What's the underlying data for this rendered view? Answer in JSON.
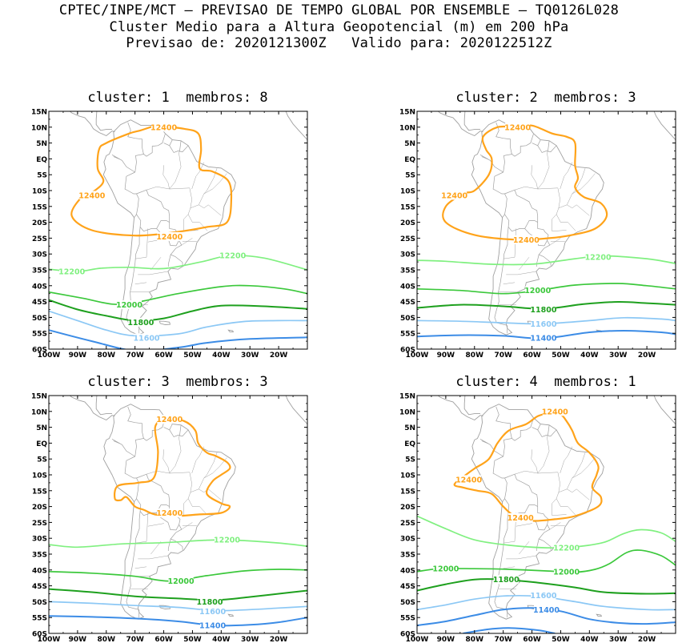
{
  "header": {
    "line1": "CPTEC/INPE/MCT – PREVISAO DE TEMPO GLOBAL POR ENSEMBLE – TQ0126L028",
    "line2": "Cluster Medio para a Altura Geopotencial (m) em 200 hPa",
    "line3": "Previsao de: 2020121300Z   Valido para: 2020122512Z"
  },
  "axes": {
    "lat_labels": [
      "15N",
      "10N",
      "5N",
      "EQ",
      "5S",
      "10S",
      "15S",
      "20S",
      "25S",
      "30S",
      "35S",
      "40S",
      "45S",
      "50S",
      "55S",
      "60S"
    ],
    "lon_labels": [
      "100W",
      "90W",
      "80W",
      "70W",
      "60W",
      "50W",
      "40W",
      "30W",
      "20W"
    ]
  },
  "colors": {
    "12400": "#ffa31a",
    "12200": "#80f080",
    "12000": "#3cc83c",
    "11800": "#1ea01e",
    "11600": "#8cc8f5",
    "11400": "#3c8ce6",
    "coast": "#a0a0a0"
  },
  "panels": [
    {
      "title": "cluster: 1  membros: 8",
      "labels": [
        {
          "text": "12400",
          "lon": -60,
          "lat": 10,
          "color": "#ffa31a"
        },
        {
          "text": "12400",
          "lon": -85,
          "lat": -11.5,
          "color": "#ffa31a"
        },
        {
          "text": "12400",
          "lon": -58,
          "lat": -24.5,
          "color": "#ffa31a"
        },
        {
          "text": "12200",
          "lon": -36,
          "lat": -30.5,
          "color": "#80f080"
        },
        {
          "text": "12200",
          "lon": -92,
          "lat": -35.5,
          "color": "#80f080"
        },
        {
          "text": "12000",
          "lon": -72,
          "lat": -46,
          "color": "#3cc83c"
        },
        {
          "text": "11800",
          "lon": -68,
          "lat": -51.5,
          "color": "#1ea01e"
        },
        {
          "text": "11600",
          "lon": -66,
          "lat": -56.5,
          "color": "#8cc8f5"
        }
      ]
    },
    {
      "title": "cluster: 2  membros: 3",
      "labels": [
        {
          "text": "12400",
          "lon": -65,
          "lat": 10,
          "color": "#ffa31a"
        },
        {
          "text": "12400",
          "lon": -87,
          "lat": -11.5,
          "color": "#ffa31a"
        },
        {
          "text": "12400",
          "lon": -62,
          "lat": -25.5,
          "color": "#ffa31a"
        },
        {
          "text": "12200",
          "lon": -37,
          "lat": -31,
          "color": "#80f080"
        },
        {
          "text": "12000",
          "lon": -58,
          "lat": -41.5,
          "color": "#3cc83c"
        },
        {
          "text": "11800",
          "lon": -56,
          "lat": -47.5,
          "color": "#1ea01e"
        },
        {
          "text": "11600",
          "lon": -56,
          "lat": -52,
          "color": "#8cc8f5"
        },
        {
          "text": "11400",
          "lon": -56,
          "lat": -56.5,
          "color": "#3c8ce6"
        }
      ]
    },
    {
      "title": "cluster: 3  membros: 3",
      "labels": [
        {
          "text": "12400",
          "lon": -58,
          "lat": 7.5,
          "color": "#ffa31a"
        },
        {
          "text": "12400",
          "lon": -58,
          "lat": -22,
          "color": "#ffa31a"
        },
        {
          "text": "12200",
          "lon": -38,
          "lat": -30.5,
          "color": "#80f080"
        },
        {
          "text": "12000",
          "lon": -54,
          "lat": -43.5,
          "color": "#3cc83c"
        },
        {
          "text": "11800",
          "lon": -44,
          "lat": -50,
          "color": "#1ea01e"
        },
        {
          "text": "11600",
          "lon": -43,
          "lat": -53,
          "color": "#8cc8f5"
        },
        {
          "text": "11400",
          "lon": -43,
          "lat": -57.5,
          "color": "#3c8ce6"
        }
      ]
    },
    {
      "title": "cluster: 4  membros: 1",
      "labels": [
        {
          "text": "12400",
          "lon": -52,
          "lat": 10,
          "color": "#ffa31a"
        },
        {
          "text": "12400",
          "lon": -82,
          "lat": -11.5,
          "color": "#ffa31a"
        },
        {
          "text": "12400",
          "lon": -64,
          "lat": -23.5,
          "color": "#ffa31a"
        },
        {
          "text": "12200",
          "lon": -48,
          "lat": -33,
          "color": "#80f080"
        },
        {
          "text": "12000",
          "lon": -90,
          "lat": -39.5,
          "color": "#3cc83c"
        },
        {
          "text": "12000",
          "lon": -48,
          "lat": -40.5,
          "color": "#3cc83c"
        },
        {
          "text": "11800",
          "lon": -69,
          "lat": -43,
          "color": "#1ea01e"
        },
        {
          "text": "11600",
          "lon": -56,
          "lat": -48,
          "color": "#8cc8f5"
        },
        {
          "text": "11400",
          "lon": -55,
          "lat": -52.5,
          "color": "#3c8ce6"
        }
      ]
    }
  ]
}
